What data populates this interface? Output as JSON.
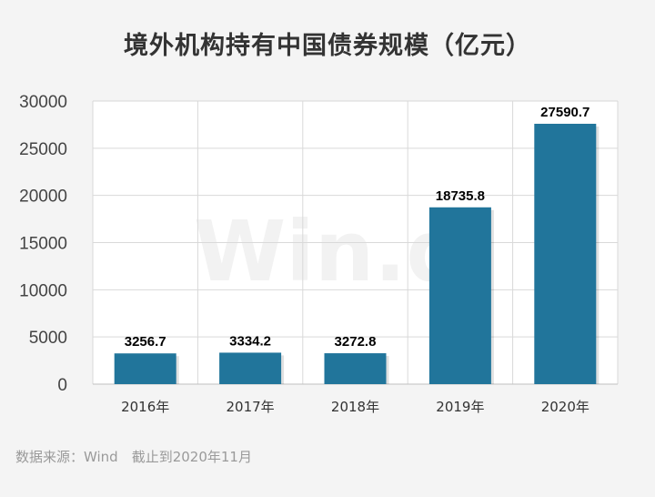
{
  "title": "境外机构持有中国债券规模（亿元）",
  "source_note": "数据来源：Wind　截止到2020年11月",
  "watermark": "Win.d",
  "colors": {
    "bar": "#21759b",
    "grid": "#d9d9d9",
    "plot_bg": "#ffffff",
    "page_bg": "#f4f4f4"
  },
  "chart_data": {
    "type": "bar",
    "title": "境外机构持有中国债券规模（亿元）",
    "categories": [
      "2016年",
      "2017年",
      "2018年",
      "2019年",
      "2020年"
    ],
    "values": [
      3256.7,
      3334.2,
      3272.8,
      18735.8,
      27590.7
    ],
    "data_labels": [
      "3256.7",
      "3334.2",
      "3272.8",
      "18735.8",
      "27590.7"
    ],
    "y_ticks": [
      0,
      5000,
      10000,
      15000,
      20000,
      25000,
      30000
    ],
    "ylim": [
      0,
      30000
    ],
    "grid": true,
    "legend": "none",
    "xlabel": "",
    "ylabel": ""
  }
}
